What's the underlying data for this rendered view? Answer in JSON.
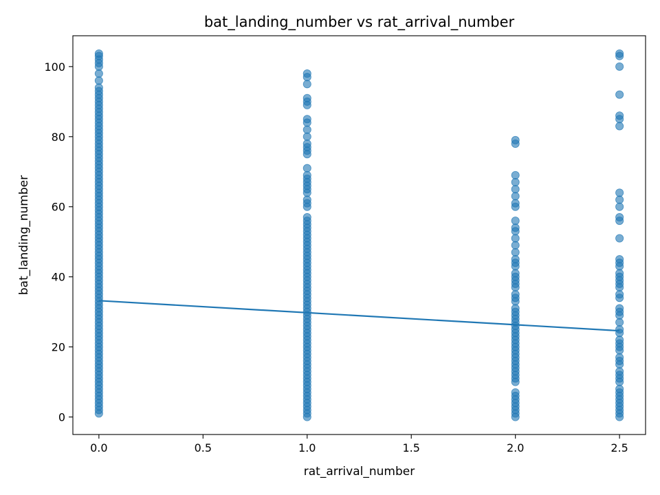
{
  "chart_data": {
    "type": "scatter",
    "title": "bat_landing_number vs rat_arrival_number",
    "xlabel": "rat_arrival_number",
    "ylabel": "bat_landing_number",
    "xlim": [
      -0.125,
      2.625
    ],
    "ylim": [
      -5,
      108.8
    ],
    "xticks": [
      0.0,
      0.5,
      1.0,
      1.5,
      2.0,
      2.5
    ],
    "xtick_labels": [
      "0.0",
      "0.5",
      "1.0",
      "1.5",
      "2.0",
      "2.5"
    ],
    "yticks": [
      0,
      20,
      40,
      60,
      80,
      100
    ],
    "ytick_labels": [
      "0",
      "20",
      "40",
      "60",
      "80",
      "100"
    ],
    "grid": false,
    "colors": {
      "points": "#1f77b4",
      "line": "#1f77b4"
    },
    "points_alpha": 0.6,
    "series": [
      {
        "type": "scatter",
        "groups": [
          {
            "x": 0.0,
            "y": [
              1,
              2,
              3,
              4,
              5,
              6,
              7,
              8,
              9,
              10,
              11,
              12,
              13,
              14,
              15,
              16,
              17,
              18,
              19,
              20,
              21,
              22,
              23,
              24,
              25,
              26,
              27,
              28,
              29,
              30,
              31,
              32,
              33,
              34,
              35,
              36,
              37,
              38,
              39,
              40,
              41,
              42,
              43,
              44,
              45,
              46,
              47,
              48,
              49,
              50,
              51,
              52,
              53,
              54,
              55,
              56,
              57,
              58,
              59,
              60,
              61,
              62,
              63,
              64,
              65,
              66,
              67,
              68,
              69,
              70,
              71,
              72,
              73,
              74,
              75,
              76,
              77,
              78,
              79,
              80,
              81,
              82,
              83,
              84,
              85,
              86,
              87,
              88,
              89,
              90,
              91,
              92,
              93,
              94,
              96,
              98,
              100,
              101,
              102,
              103,
              103.7
            ]
          },
          {
            "x": 1.0,
            "y": [
              0,
              1,
              2,
              3,
              4,
              5,
              6,
              7,
              8,
              9,
              10,
              11,
              12,
              13,
              14,
              15,
              16,
              17,
              18,
              19,
              20,
              21,
              22,
              23,
              24,
              25,
              26,
              27,
              28,
              29,
              30,
              31,
              32,
              33,
              34,
              35,
              36,
              37,
              38,
              39,
              40,
              41,
              42,
              43,
              44,
              45,
              46,
              47,
              48,
              49,
              50,
              51,
              52,
              53,
              54,
              55,
              56,
              57,
              60,
              61,
              62,
              64,
              65,
              66,
              67,
              68,
              69,
              71,
              75,
              76,
              77,
              78,
              80,
              82,
              84,
              85,
              89,
              90,
              91,
              95,
              97,
              98
            ]
          },
          {
            "x": 2.0,
            "y": [
              0,
              1,
              2,
              3,
              4,
              5,
              6,
              7,
              10,
              11,
              12,
              13,
              14,
              15,
              16,
              17,
              18,
              19,
              20,
              21,
              22,
              23,
              24,
              25,
              26,
              27,
              28,
              29,
              30,
              31,
              33,
              34,
              35,
              37,
              38,
              39,
              40,
              41,
              43,
              44,
              45,
              47,
              49,
              51,
              53,
              54,
              56,
              60,
              61,
              63,
              65,
              67,
              69,
              78,
              79
            ]
          },
          {
            "x": 2.5,
            "y": [
              0,
              1,
              2,
              3,
              4,
              5,
              6,
              7,
              8,
              10,
              11,
              12,
              13,
              15,
              16,
              17,
              19,
              20,
              21,
              22,
              24,
              25,
              27,
              29,
              30,
              31,
              34,
              35,
              37,
              38,
              39,
              40,
              41,
              43,
              44,
              45,
              51,
              56,
              57,
              60,
              62,
              64,
              83,
              85,
              86,
              92,
              100,
              103,
              103.7
            ]
          }
        ]
      },
      {
        "type": "line",
        "x": [
          0.0,
          2.5
        ],
        "y": [
          33.2,
          24.6
        ]
      }
    ]
  }
}
